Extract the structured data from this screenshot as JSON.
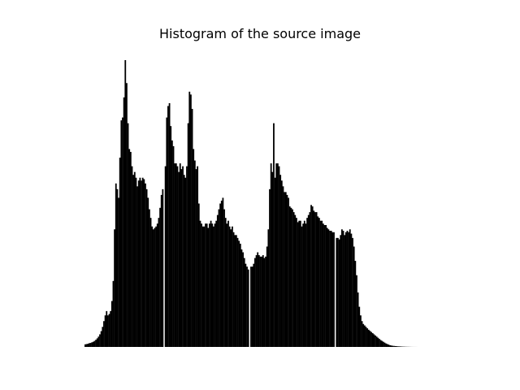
{
  "chart_data": {
    "type": "bar",
    "title": "Histogram of the source image",
    "axes_visible": false,
    "bar_color": "#000000",
    "background": "#ffffff",
    "xlim": [
      0,
      255
    ],
    "ylim": [
      0,
      100
    ],
    "values": [
      0.9,
      1.0,
      1.1,
      1.3,
      1.4,
      1.6,
      1.8,
      2.1,
      2.5,
      3.0,
      3.6,
      4.4,
      5.5,
      7.0,
      9.0,
      11.0,
      12.5,
      11.0,
      11.5,
      12.5,
      16.0,
      23.0,
      41.0,
      57.0,
      55.0,
      52.0,
      66.0,
      79.0,
      80.0,
      87.0,
      100.0,
      92.0,
      78.0,
      69.0,
      68.0,
      63.0,
      60.0,
      61.0,
      59.0,
      56.0,
      58.0,
      59.0,
      58.0,
      59.0,
      58.5,
      57.0,
      55.0,
      52.0,
      48.0,
      45.0,
      42.0,
      41.0,
      41.5,
      42.0,
      43.0,
      45.0,
      48.5,
      53.0,
      55.0,
      0.0,
      63.0,
      80.0,
      84.0,
      85.0,
      77.0,
      72.0,
      70.0,
      64.0,
      64.0,
      63.0,
      61.0,
      64.0,
      62.0,
      63.0,
      60.0,
      59.0,
      63.0,
      78.0,
      89.0,
      88.0,
      83.0,
      69.0,
      65.0,
      62.0,
      63.0,
      50.0,
      44.0,
      43.0,
      42.0,
      42.0,
      43.0,
      43.0,
      41.5,
      43.0,
      44.0,
      43.0,
      42.0,
      43.0,
      44.0,
      46.0,
      48.0,
      50.0,
      51.0,
      52.0,
      48.0,
      45.0,
      43.0,
      44.0,
      42.0,
      41.0,
      42.0,
      40.0,
      39.0,
      39.0,
      38.0,
      37.0,
      36.0,
      34.0,
      33.0,
      31.0,
      29.0,
      28.0,
      27.0,
      0.0,
      28.0,
      28.0,
      29.0,
      31.0,
      32.0,
      33.0,
      32.0,
      31.5,
      31.5,
      32.0,
      31.0,
      31.5,
      35.0,
      41.0,
      55.0,
      64.0,
      61.0,
      78.0,
      59.0,
      64.0,
      64.0,
      63.0,
      60.0,
      58.0,
      56.0,
      54.0,
      54.0,
      53.0,
      52.0,
      49.0,
      48.5,
      48.0,
      47.0,
      46.0,
      45.0,
      43.5,
      44.0,
      44.0,
      42.0,
      43.0,
      44.0,
      43.0,
      45.0,
      46.0,
      47.0,
      49.5,
      49.0,
      47.5,
      47.0,
      47.0,
      45.5,
      45.0,
      44.0,
      44.0,
      43.0,
      42.5,
      42.5,
      41.5,
      41.0,
      40.5,
      40.5,
      40.0,
      40.0,
      0.0,
      38.0,
      38.0,
      37.5,
      39.0,
      41.0,
      40.5,
      39.0,
      40.0,
      40.5,
      40.0,
      41.0,
      39.5,
      38.0,
      35.0,
      30.0,
      25.0,
      19.0,
      14.0,
      11.0,
      9.0,
      8.0,
      7.5,
      7.0,
      6.5,
      6.0,
      5.6,
      5.2,
      4.8,
      4.4,
      4.0,
      3.6,
      3.2,
      2.8,
      2.4,
      2.1,
      1.8,
      1.5,
      1.2,
      1.0,
      0.8,
      0.6,
      0.5,
      0.4,
      0.35,
      0.3,
      0.25,
      0.2,
      0.18,
      0.15,
      0.12,
      0.1,
      0.08,
      0.06,
      0.05,
      0.04,
      0.03,
      0.02,
      0.015,
      0.01,
      0.01,
      0.005,
      0.0,
      0.0,
      0.0,
      0.0,
      0.0
    ]
  }
}
